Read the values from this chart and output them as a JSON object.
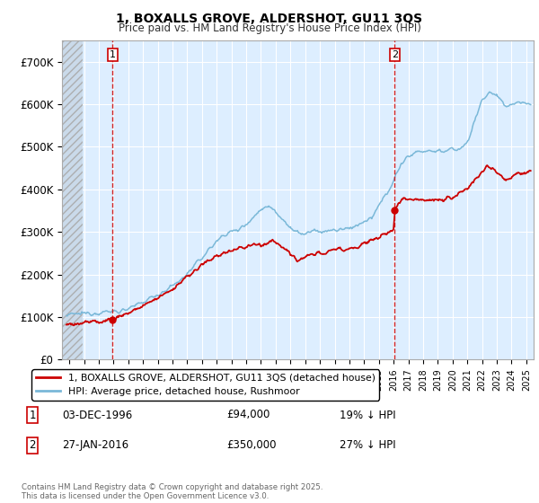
{
  "title_line1": "1, BOXALLS GROVE, ALDERSHOT, GU11 3QS",
  "title_line2": "Price paid vs. HM Land Registry's House Price Index (HPI)",
  "hpi_color": "#7ab8d8",
  "price_color": "#cc0000",
  "marker_color": "#cc0000",
  "vline_color": "#cc0000",
  "legend_label_price": "1, BOXALLS GROVE, ALDERSHOT, GU11 3QS (detached house)",
  "legend_label_hpi": "HPI: Average price, detached house, Rushmoor",
  "transactions": [
    {
      "id": 1,
      "date": "03-DEC-1996",
      "price": 94000,
      "hpi_diff": "19% ↓ HPI",
      "x_year": 1996.92
    },
    {
      "id": 2,
      "date": "27-JAN-2016",
      "price": 350000,
      "hpi_diff": "27% ↓ HPI",
      "x_year": 2016.08
    }
  ],
  "footnote": "Contains HM Land Registry data © Crown copyright and database right 2025.\nThis data is licensed under the Open Government Licence v3.0.",
  "ylim": [
    0,
    750000
  ],
  "yticks": [
    0,
    100000,
    200000,
    300000,
    400000,
    500000,
    600000,
    700000
  ],
  "ytick_labels": [
    "£0",
    "£100K",
    "£200K",
    "£300K",
    "£400K",
    "£500K",
    "£600K",
    "£700K"
  ],
  "xlim_start": 1993.5,
  "xlim_end": 2025.5,
  "hatch_end": 1994.9,
  "chart_bg": "#ddeeff",
  "hatch_bg": "#c8d8e8"
}
